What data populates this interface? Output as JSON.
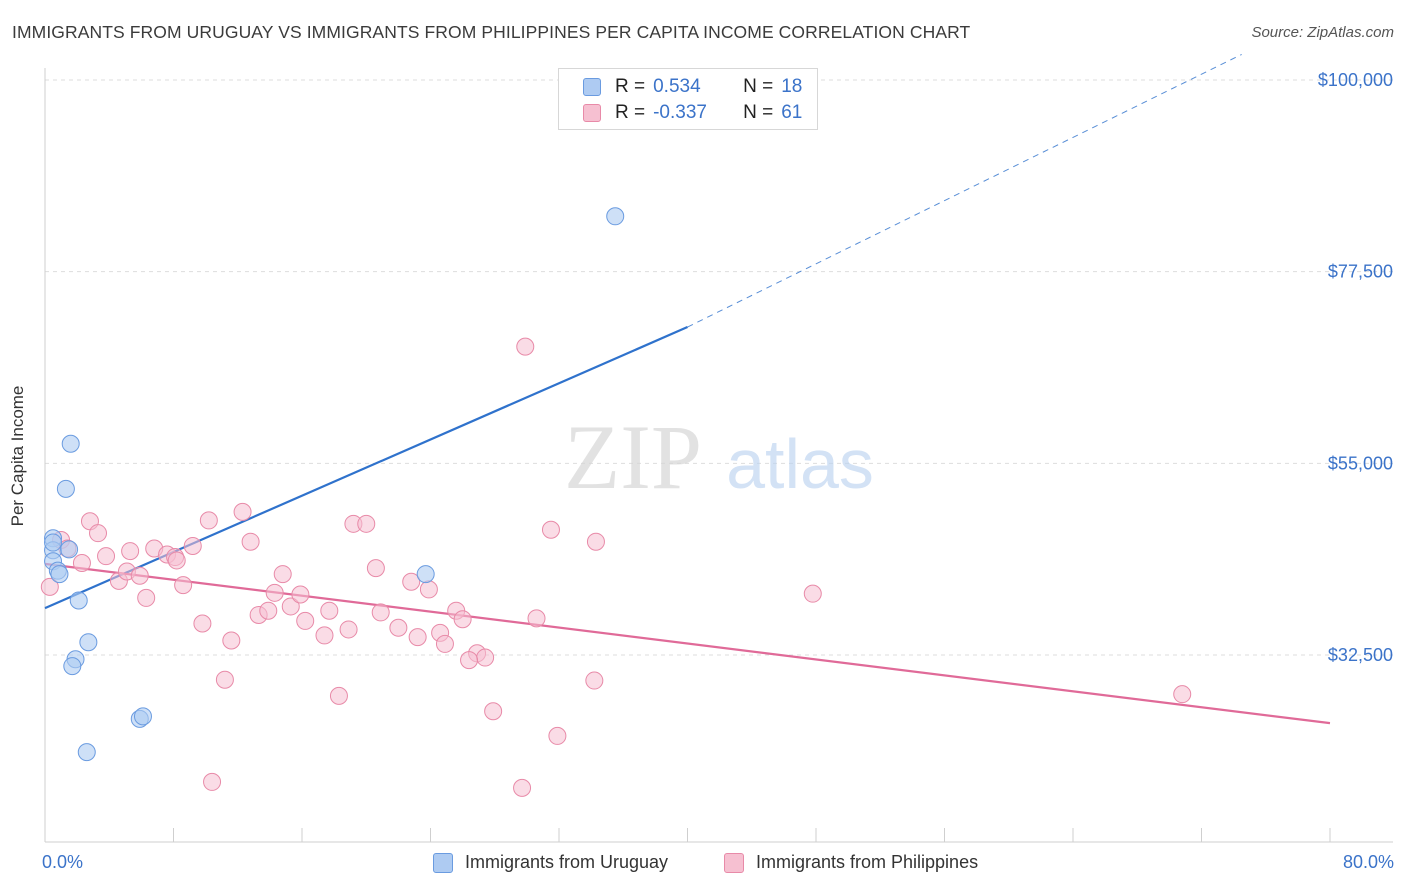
{
  "header": {
    "title": "IMMIGRANTS FROM URUGUAY VS IMMIGRANTS FROM PHILIPPINES PER CAPITA INCOME CORRELATION CHART",
    "source": "Source: ZipAtlas.com"
  },
  "watermark": {
    "zip": "ZIP",
    "atlas": "atlas"
  },
  "stats_legend": {
    "rows": [
      {
        "r_label": "R =",
        "r_value": "0.534",
        "n_label": "N =",
        "n_value": "18",
        "color": "#aecbf2"
      },
      {
        "r_label": "R =",
        "r_value": "-0.337",
        "n_label": "N =",
        "n_value": "61",
        "color": "#f6c0d1"
      }
    ]
  },
  "colors": {
    "uruguay_fill": "#aecbf2",
    "uruguay_stroke": "#6a9be0",
    "uruguay_line": "#2f72cc",
    "philippines_fill": "#f6c0d1",
    "philippines_stroke": "#e88aa8",
    "philippines_line": "#e06a98",
    "axis_text": "#3b73c9",
    "grid": "#dddddd"
  },
  "chart_data": {
    "type": "scatter",
    "title": "IMMIGRANTS FROM URUGUAY VS IMMIGRANTS FROM PHILIPPINES PER CAPITA INCOME CORRELATION CHART",
    "xlabel": "",
    "ylabel": "Per Capita Income",
    "xlim": [
      0,
      80
    ],
    "ylim": [
      13000,
      104000
    ],
    "x_tick_labels": [
      "0.0%",
      "80.0%"
    ],
    "y_ticks": [
      32500,
      55000,
      77500,
      100000
    ],
    "y_tick_labels": [
      "$32,500",
      "$55,000",
      "$77,500",
      "$100,000"
    ],
    "grid": "horizontal dashed",
    "legend_position": "bottom-center",
    "series": [
      {
        "name": "Immigrants from Uruguay",
        "points": [
          [
            0.5,
            46200
          ],
          [
            0.5,
            44800
          ],
          [
            0.5,
            43500
          ],
          [
            0.8,
            42400
          ],
          [
            0.9,
            42000
          ],
          [
            1.5,
            44900
          ],
          [
            1.6,
            57300
          ],
          [
            1.3,
            52000
          ],
          [
            2.1,
            38900
          ],
          [
            2.7,
            34000
          ],
          [
            1.9,
            32000
          ],
          [
            1.7,
            31200
          ],
          [
            5.9,
            25000
          ],
          [
            6.1,
            25300
          ],
          [
            2.6,
            21100
          ],
          [
            23.7,
            42000
          ],
          [
            35.5,
            84000
          ],
          [
            0.5,
            45700
          ]
        ],
        "trend": {
          "x0": 0,
          "y0": 38000,
          "x1": 40,
          "y1": 71000,
          "dashed_to_x": 74.5,
          "dashed_to_y": 103000
        }
      },
      {
        "name": "Immigrants from Philippines",
        "points": [
          [
            0.3,
            40500
          ],
          [
            1.0,
            46000
          ],
          [
            1.4,
            45000
          ],
          [
            2.3,
            43300
          ],
          [
            2.8,
            48200
          ],
          [
            3.3,
            46800
          ],
          [
            3.8,
            44100
          ],
          [
            4.6,
            41200
          ],
          [
            5.1,
            42300
          ],
          [
            5.3,
            44700
          ],
          [
            5.9,
            41800
          ],
          [
            6.3,
            39200
          ],
          [
            6.8,
            45000
          ],
          [
            7.6,
            44300
          ],
          [
            8.1,
            44000
          ],
          [
            8.6,
            40700
          ],
          [
            9.2,
            45300
          ],
          [
            9.8,
            36200
          ],
          [
            10.2,
            48300
          ],
          [
            11.2,
            29600
          ],
          [
            11.6,
            34200
          ],
          [
            12.3,
            49300
          ],
          [
            12.8,
            45800
          ],
          [
            13.3,
            37200
          ],
          [
            13.9,
            37700
          ],
          [
            14.3,
            39800
          ],
          [
            14.8,
            42000
          ],
          [
            15.3,
            38200
          ],
          [
            15.9,
            39600
          ],
          [
            16.2,
            36500
          ],
          [
            17.4,
            34800
          ],
          [
            17.7,
            37700
          ],
          [
            18.3,
            27700
          ],
          [
            18.9,
            35500
          ],
          [
            19.2,
            47900
          ],
          [
            20.0,
            47900
          ],
          [
            20.6,
            42700
          ],
          [
            20.9,
            37500
          ],
          [
            22.0,
            35700
          ],
          [
            22.8,
            41100
          ],
          [
            23.2,
            34600
          ],
          [
            23.9,
            40200
          ],
          [
            24.6,
            35100
          ],
          [
            24.9,
            33800
          ],
          [
            25.6,
            37700
          ],
          [
            26.0,
            36700
          ],
          [
            26.9,
            32700
          ],
          [
            27.4,
            32200
          ],
          [
            27.9,
            25900
          ],
          [
            29.7,
            16900
          ],
          [
            29.9,
            68700
          ],
          [
            30.6,
            36800
          ],
          [
            31.5,
            47200
          ],
          [
            31.9,
            23000
          ],
          [
            34.2,
            29500
          ],
          [
            34.3,
            45800
          ],
          [
            10.4,
            17600
          ],
          [
            47.8,
            39700
          ],
          [
            70.8,
            27900
          ],
          [
            26.4,
            31900
          ],
          [
            8.2,
            43600
          ]
        ],
        "trend": {
          "x0": 0,
          "y0": 43200,
          "x1": 80,
          "y1": 24500
        }
      }
    ]
  },
  "bottom_legend": {
    "items": [
      {
        "label": "Immigrants from Uruguay"
      },
      {
        "label": "Immigrants from Philippines"
      }
    ]
  }
}
